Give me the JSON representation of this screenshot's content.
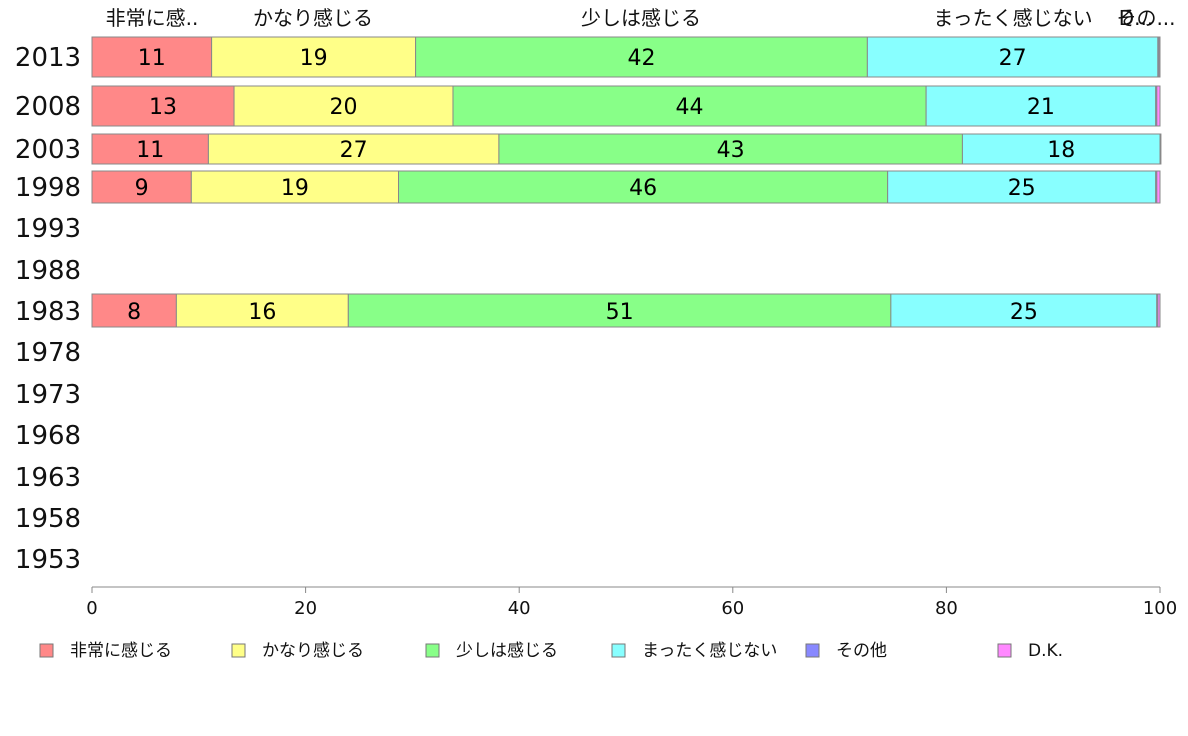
{
  "chart_data": {
    "type": "bar",
    "orientation": "horizontal",
    "stacked": "100%",
    "categories": [
      "2013",
      "2008",
      "2003",
      "1998",
      "1993",
      "1988",
      "1983",
      "1978",
      "1973",
      "1968",
      "1963",
      "1958",
      "1953"
    ],
    "series": [
      {
        "name": "非常に感じる",
        "color": "#ff8888",
        "values": [
          11.2,
          13.3,
          10.9,
          9.3,
          null,
          null,
          7.9,
          null,
          null,
          null,
          null,
          null,
          null
        ],
        "labels": [
          "11",
          "13",
          "11",
          "9",
          "",
          "",
          "8",
          "",
          "",
          "",
          "",
          "",
          ""
        ]
      },
      {
        "name": "かなり感じる",
        "color": "#ffff88",
        "values": [
          19.1,
          20.5,
          27.2,
          19.4,
          null,
          null,
          16.1,
          null,
          null,
          null,
          null,
          null,
          null
        ],
        "labels": [
          "19",
          "20",
          "27",
          "19",
          "",
          "",
          "16",
          "",
          "",
          "",
          "",
          "",
          ""
        ]
      },
      {
        "name": "少しは感じる",
        "color": "#88ff88",
        "values": [
          42.3,
          44.3,
          43.4,
          45.8,
          null,
          null,
          50.8,
          null,
          null,
          null,
          null,
          null,
          null
        ],
        "labels": [
          "42",
          "44",
          "43",
          "46",
          "",
          "",
          "51",
          "",
          "",
          "",
          "",
          "",
          ""
        ]
      },
      {
        "name": "まったく感じない",
        "color": "#88ffff",
        "values": [
          27.2,
          21.5,
          18.5,
          25.1,
          null,
          null,
          24.9,
          null,
          null,
          null,
          null,
          null,
          null
        ],
        "labels": [
          "27",
          "21",
          "18",
          "25",
          "",
          "",
          "25",
          "",
          "",
          "",
          "",
          "",
          ""
        ]
      },
      {
        "name": "その他",
        "color": "#8888ff",
        "values": [
          0.1,
          0.1,
          0.0,
          0.1,
          null,
          null,
          0.1,
          null,
          null,
          null,
          null,
          null,
          null
        ],
        "labels": [
          "",
          "",
          "",
          "",
          "",
          "",
          "",
          "",
          "",
          "",
          "",
          "",
          ""
        ]
      },
      {
        "name": "D.K.",
        "color": "#ff88ff",
        "values": [
          0.1,
          0.3,
          0.0,
          0.3,
          null,
          null,
          0.2,
          null,
          null,
          null,
          null,
          null,
          null
        ],
        "labels": [
          "",
          "",
          "",
          "",
          "",
          "",
          "",
          "",
          "",
          "",
          "",
          "",
          ""
        ]
      }
    ],
    "top_labels": [
      "非常に感..",
      "かなり感じる",
      "少しは感じる",
      "まったく感じない",
      "その...",
      "D..."
    ],
    "xlim": [
      0,
      100
    ],
    "xticks": [
      0,
      20,
      40,
      60,
      80,
      100
    ],
    "grid": false,
    "legend_position": "bottom"
  }
}
